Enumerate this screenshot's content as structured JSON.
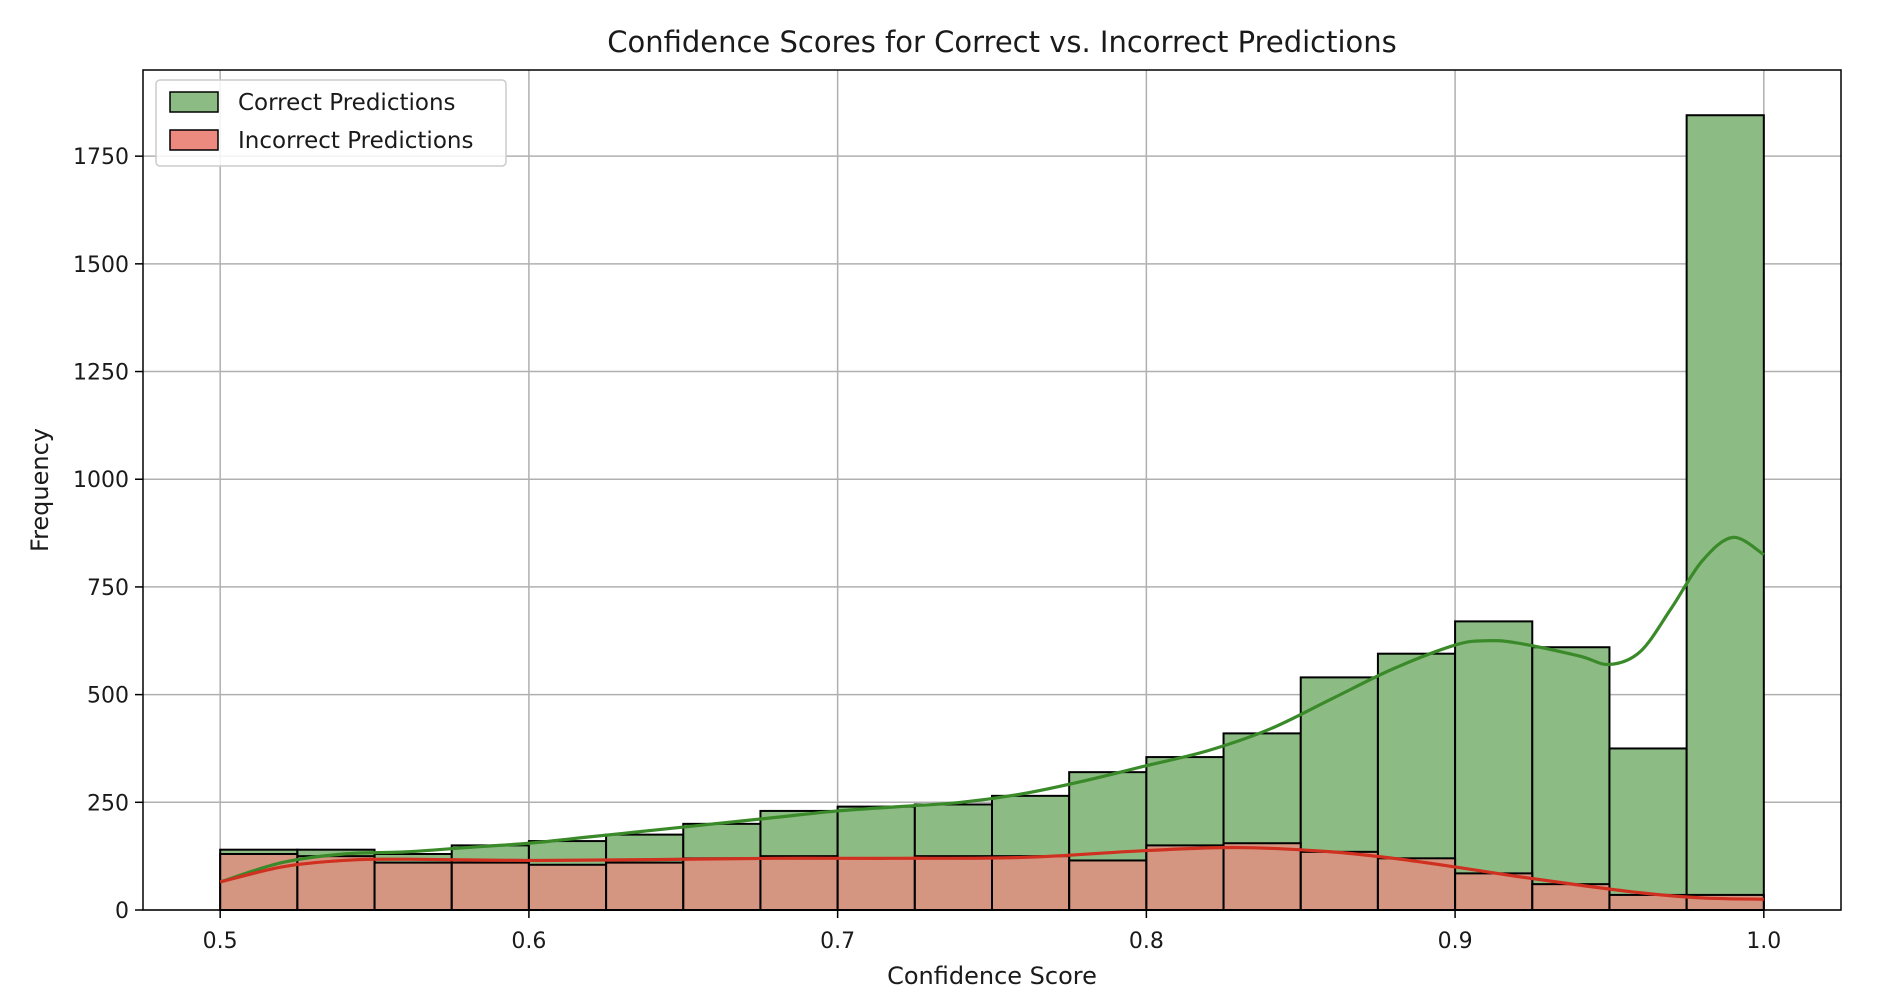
{
  "chart_data": {
    "type": "bar",
    "title": "Confidence Scores for Correct vs. Incorrect Predictions",
    "xlabel": "Confidence Score",
    "ylabel": "Frequency",
    "xlim": [
      0.475,
      1.025
    ],
    "ylim": [
      0,
      1950
    ],
    "xticks": [
      0.5,
      0.6,
      0.7,
      0.8,
      0.9,
      1.0
    ],
    "xtick_labels": [
      "0.5",
      "0.6",
      "0.7",
      "0.8",
      "0.9",
      "1.0"
    ],
    "yticks": [
      0,
      250,
      500,
      750,
      1000,
      1250,
      1500,
      1750
    ],
    "ytick_labels": [
      "0",
      "250",
      "500",
      "750",
      "1000",
      "1250",
      "1500",
      "1750"
    ],
    "grid": true,
    "legend_position": "upper-left",
    "bin_edges": [
      0.5,
      0.525,
      0.55,
      0.575,
      0.6,
      0.625,
      0.65,
      0.675,
      0.7,
      0.725,
      0.75,
      0.775,
      0.8,
      0.825,
      0.85,
      0.875,
      0.9,
      0.925,
      0.95,
      0.975,
      1.0
    ],
    "series": [
      {
        "name": "Correct Predictions",
        "color": "#8cbc84",
        "line_color": "#3a8a2a",
        "values": [
          140,
          140,
          130,
          150,
          160,
          175,
          200,
          230,
          240,
          245,
          265,
          320,
          355,
          410,
          540,
          595,
          670,
          610,
          375,
          1845
        ],
        "kde": [
          [
            0.5,
            65
          ],
          [
            0.52,
            110
          ],
          [
            0.54,
            130
          ],
          [
            0.56,
            135
          ],
          [
            0.58,
            145
          ],
          [
            0.6,
            155
          ],
          [
            0.62,
            170
          ],
          [
            0.64,
            185
          ],
          [
            0.66,
            200
          ],
          [
            0.68,
            215
          ],
          [
            0.7,
            230
          ],
          [
            0.72,
            240
          ],
          [
            0.74,
            250
          ],
          [
            0.76,
            270
          ],
          [
            0.78,
            300
          ],
          [
            0.8,
            335
          ],
          [
            0.82,
            370
          ],
          [
            0.84,
            420
          ],
          [
            0.86,
            490
          ],
          [
            0.88,
            560
          ],
          [
            0.9,
            615
          ],
          [
            0.91,
            625
          ],
          [
            0.92,
            620
          ],
          [
            0.94,
            590
          ],
          [
            0.95,
            570
          ],
          [
            0.96,
            600
          ],
          [
            0.97,
            700
          ],
          [
            0.98,
            810
          ],
          [
            0.99,
            865
          ],
          [
            1.0,
            825
          ]
        ]
      },
      {
        "name": "Incorrect Predictions",
        "color": "#ec8a80",
        "line_color": "#d03020",
        "values": [
          130,
          125,
          110,
          110,
          105,
          110,
          120,
          125,
          120,
          125,
          125,
          115,
          150,
          155,
          135,
          120,
          85,
          60,
          35,
          35
        ],
        "kde": [
          [
            0.5,
            65
          ],
          [
            0.52,
            100
          ],
          [
            0.54,
            115
          ],
          [
            0.56,
            118
          ],
          [
            0.6,
            115
          ],
          [
            0.64,
            117
          ],
          [
            0.68,
            120
          ],
          [
            0.72,
            120
          ],
          [
            0.76,
            122
          ],
          [
            0.8,
            138
          ],
          [
            0.83,
            145
          ],
          [
            0.86,
            135
          ],
          [
            0.88,
            120
          ],
          [
            0.9,
            100
          ],
          [
            0.92,
            78
          ],
          [
            0.94,
            58
          ],
          [
            0.96,
            40
          ],
          [
            0.98,
            28
          ],
          [
            1.0,
            25
          ]
        ]
      }
    ]
  }
}
